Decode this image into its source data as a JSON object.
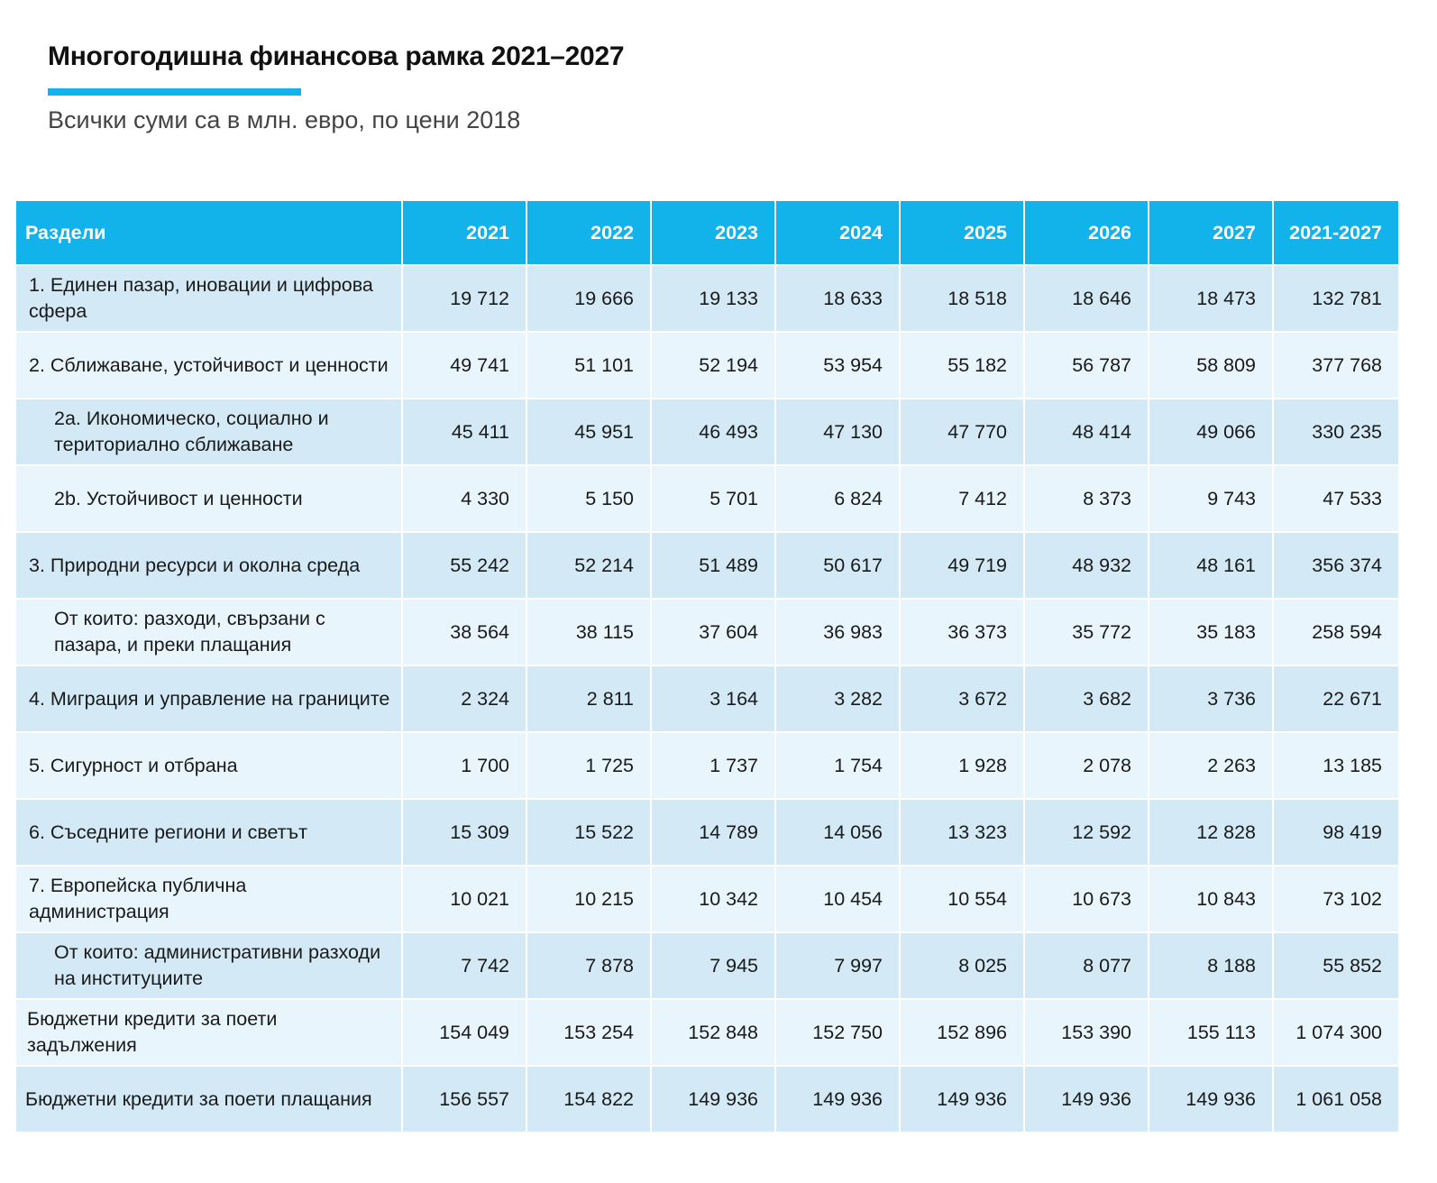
{
  "header": {
    "title": "Многогодишна финансова рамка 2021–2027",
    "subtitle": "Всички суми са в млн. евро, по цени 2018"
  },
  "colors": {
    "accent": "#12b2ea",
    "row_dark": "#d3e9f6",
    "row_light": "#e9f5fc"
  },
  "chart_data": {
    "type": "table",
    "title": "Многогодишна финансова рамка 2021–2027",
    "subtitle": "Всички суми са в млн. евро, по цени 2018",
    "columns": [
      "Раздели",
      "2021",
      "2022",
      "2023",
      "2024",
      "2025",
      "2026",
      "2027",
      "2021-2027"
    ],
    "rows": [
      {
        "label": "1. Единен пазар, иновации и цифрова сфера",
        "level": 0,
        "values": [
          "19 712",
          "19 666",
          "19 133",
          "18 633",
          "18 518",
          "18 646",
          "18 473",
          "132 781"
        ]
      },
      {
        "label": "2. Сближаване, устойчивост и ценности",
        "level": 0,
        "values": [
          "49 741",
          "51 101",
          "52 194",
          "53 954",
          "55 182",
          "56 787",
          "58 809",
          "377 768"
        ]
      },
      {
        "label": "2a. Икономическо, социално и териториално сближаване",
        "level": 1,
        "values": [
          "45 411",
          "45 951",
          "46 493",
          "47 130",
          "47 770",
          "48 414",
          "49 066",
          "330 235"
        ]
      },
      {
        "label": "2b. Устойчивост и ценности",
        "level": 1,
        "values": [
          "4 330",
          "5 150",
          "5 701",
          "6 824",
          "7 412",
          "8 373",
          "9 743",
          "47 533"
        ]
      },
      {
        "label": "3. Природни ресурси и околна среда",
        "level": 0,
        "values": [
          "55 242",
          "52 214",
          "51 489",
          "50 617",
          "49 719",
          "48 932",
          "48 161",
          "356 374"
        ]
      },
      {
        "label": "От които: разходи, свързани с пазара, и преки плащания",
        "level": 1,
        "values": [
          "38 564",
          "38 115",
          "37 604",
          "36 983",
          "36 373",
          "35 772",
          "35 183",
          "258 594"
        ]
      },
      {
        "label": "4. Миграция и управление на границите",
        "level": 0,
        "values": [
          "2 324",
          "2 811",
          "3 164",
          "3 282",
          "3 672",
          "3 682",
          "3 736",
          "22 671"
        ]
      },
      {
        "label": "5. Сигурност и отбрана",
        "level": 0,
        "values": [
          "1 700",
          "1 725",
          "1 737",
          "1 754",
          "1 928",
          "2 078",
          "2 263",
          "13 185"
        ]
      },
      {
        "label": "6. Съседните региони и светът",
        "level": 0,
        "values": [
          "15 309",
          "15 522",
          "14 789",
          "14 056",
          "13 323",
          "12 592",
          "12 828",
          "98 419"
        ]
      },
      {
        "label": "7. Европейска публична администрация",
        "level": 0,
        "values": [
          "10 021",
          "10 215",
          "10 342",
          "10 454",
          "10 554",
          "10 673",
          "10 843",
          "73 102"
        ]
      },
      {
        "label": "От които: административни разходи на институциите",
        "level": 1,
        "values": [
          "7 742",
          "7 878",
          "7 945",
          "7 997",
          "8 025",
          "8 077",
          "8 188",
          "55 852"
        ]
      },
      {
        "label": "Бюджетни кредити за поети задължения",
        "level": 2,
        "values": [
          "154 049",
          "153 254",
          "152 848",
          "152 750",
          "152 896",
          "153 390",
          "155 113",
          "1 074 300"
        ]
      },
      {
        "label": "Бюджетни кредити за поети плащания",
        "level": 3,
        "values": [
          "156 557",
          "154 822",
          "149 936",
          "149 936",
          "149 936",
          "149 936",
          "149 936",
          "1 061 058"
        ]
      }
    ]
  }
}
